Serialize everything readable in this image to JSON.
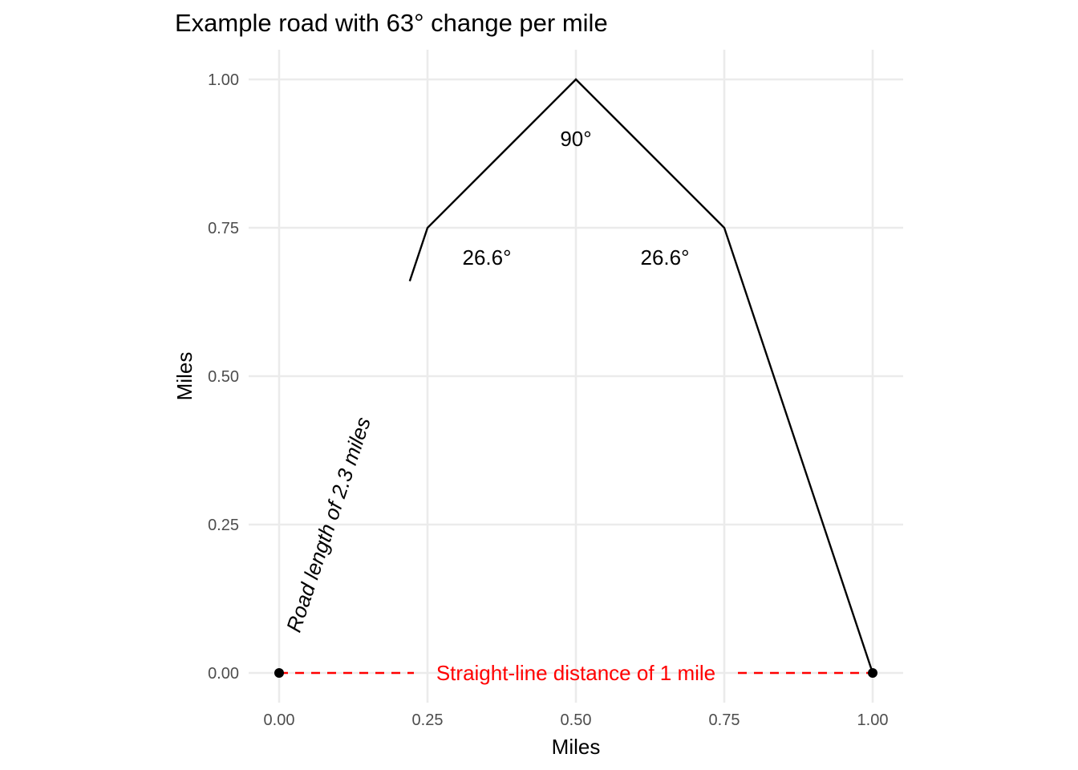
{
  "chart_data": {
    "type": "line",
    "title": "Example road with 63° change per mile",
    "xlabel": "Miles",
    "ylabel": "Miles",
    "xlim": [
      0,
      1
    ],
    "ylim": [
      0,
      1
    ],
    "grid": true,
    "x_ticks": [
      {
        "value": 0,
        "label": "0.00"
      },
      {
        "value": 0.25,
        "label": "0.25"
      },
      {
        "value": 0.5,
        "label": "0.50"
      },
      {
        "value": 0.75,
        "label": "0.75"
      },
      {
        "value": 1,
        "label": "1.00"
      }
    ],
    "y_ticks": [
      {
        "value": 0,
        "label": "0.00"
      },
      {
        "value": 0.25,
        "label": "0.25"
      },
      {
        "value": 0.5,
        "label": "0.50"
      },
      {
        "value": 0.75,
        "label": "0.75"
      },
      {
        "value": 1,
        "label": "1.00"
      }
    ],
    "road": {
      "color": "#000000",
      "points": [
        {
          "x": 0,
          "y": 0
        },
        {
          "x": 0.25,
          "y": 0.75
        },
        {
          "x": 0.5,
          "y": 1.0
        },
        {
          "x": 0.75,
          "y": 0.75
        },
        {
          "x": 1.0,
          "y": 0
        }
      ]
    },
    "endpoints": [
      {
        "x": 0,
        "y": 0
      },
      {
        "x": 1,
        "y": 0
      }
    ],
    "straight_line": {
      "color": "#ff0000",
      "style": "dashed",
      "from": {
        "x": 0,
        "y": 0
      },
      "to": {
        "x": 1,
        "y": 0
      },
      "label": "Straight-line distance of 1 mile"
    },
    "annotations": [
      {
        "text": "90°",
        "x": 0.5,
        "y": 0.9
      },
      {
        "text": "26.6°",
        "x": 0.35,
        "y": 0.7
      },
      {
        "text": "26.6°",
        "x": 0.65,
        "y": 0.7
      },
      {
        "text": "Road length of 2.3 miles",
        "x": 0.083,
        "y": 0.25
      }
    ]
  }
}
